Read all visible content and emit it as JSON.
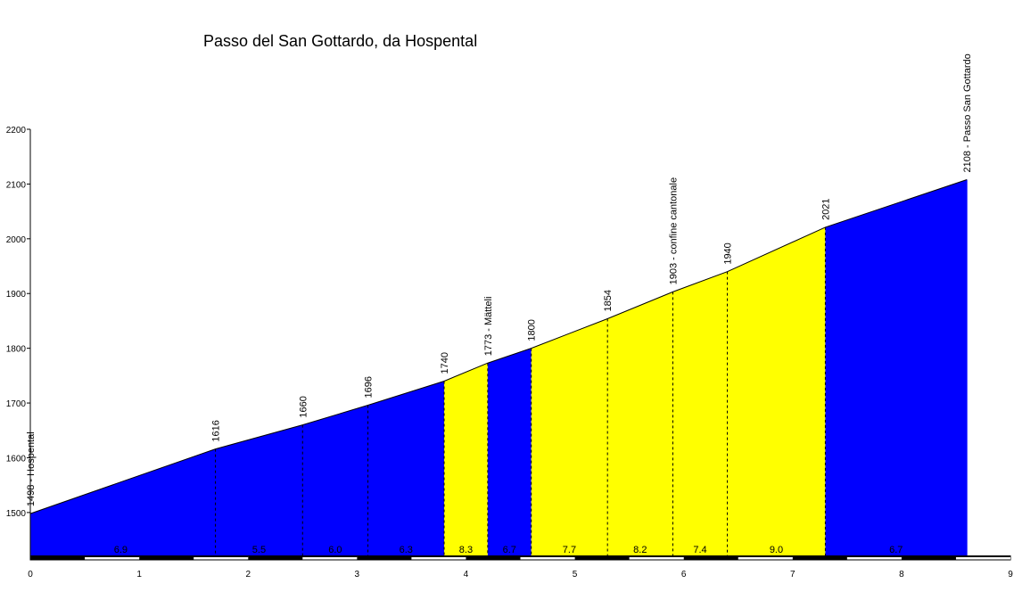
{
  "chart_data": {
    "type": "area",
    "title": "Passo del San Gottardo, da Hospental",
    "xlim": [
      0,
      9
    ],
    "ylim": [
      1420,
      2200
    ],
    "x_ticks": [
      "0",
      "1",
      "2",
      "3",
      "4",
      "5",
      "6",
      "7",
      "8",
      "9"
    ],
    "y_ticks": [
      "1500",
      "1600",
      "1700",
      "1800",
      "1900",
      "2000",
      "2100",
      "2200"
    ],
    "colors": {
      "steep": "#0000ff",
      "moderate": "#ffff00",
      "outline": "#000000"
    },
    "points": [
      {
        "km": 0,
        "alt": 1498,
        "label": "1498 - Hospental"
      },
      {
        "km": 1.7,
        "alt": 1616,
        "label": "1616"
      },
      {
        "km": 2.5,
        "alt": 1660,
        "label": "1660"
      },
      {
        "km": 3.1,
        "alt": 1696,
        "label": "1696"
      },
      {
        "km": 3.8,
        "alt": 1740,
        "label": "1740"
      },
      {
        "km": 4.2,
        "alt": 1773,
        "label": "1773 - Mätteli"
      },
      {
        "km": 4.6,
        "alt": 1800,
        "label": "1800"
      },
      {
        "km": 5.3,
        "alt": 1854,
        "label": "1854"
      },
      {
        "km": 5.9,
        "alt": 1903,
        "label": "1903 - confine cantonale"
      },
      {
        "km": 6.4,
        "alt": 1940,
        "label": "1940"
      },
      {
        "km": 7.3,
        "alt": 2021,
        "label": "2021"
      },
      {
        "km": 8.6,
        "alt": 2108,
        "label": "2108 - Passo San Gottardo"
      }
    ],
    "segments": [
      {
        "start": 0,
        "end": 3.8,
        "color": "blue"
      },
      {
        "start": 3.8,
        "end": 4.2,
        "color": "yellow"
      },
      {
        "start": 4.2,
        "end": 4.6,
        "color": "blue"
      },
      {
        "start": 4.6,
        "end": 7.3,
        "color": "yellow"
      },
      {
        "start": 7.3,
        "end": 8.6,
        "color": "blue"
      }
    ],
    "gradients": [
      {
        "km": 0.83,
        "value": "6.9"
      },
      {
        "km": 2.1,
        "value": "5.5"
      },
      {
        "km": 2.8,
        "value": "6.0"
      },
      {
        "km": 3.45,
        "value": "6.3"
      },
      {
        "km": 4.0,
        "value": "8.3"
      },
      {
        "km": 4.4,
        "value": "6.7"
      },
      {
        "km": 4.95,
        "value": "7.7"
      },
      {
        "km": 5.6,
        "value": "8.2"
      },
      {
        "km": 6.15,
        "value": "7.4"
      },
      {
        "km": 6.85,
        "value": "9.0"
      },
      {
        "km": 7.95,
        "value": "6.7"
      }
    ]
  }
}
